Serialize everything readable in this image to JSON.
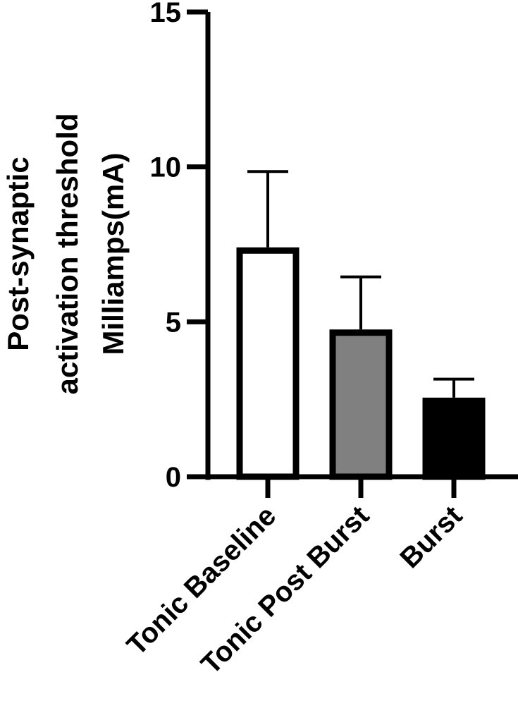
{
  "chart_data": {
    "type": "bar",
    "categories": [
      "Tonic Baseline",
      "Tonic Post Burst",
      "Burst"
    ],
    "values": [
      7.3,
      4.65,
      2.45
    ],
    "errors": [
      2.55,
      1.8,
      0.7
    ],
    "bar_colors": [
      "#ffffff",
      "#808080",
      "#000000"
    ],
    "ylabel_lines": [
      "Post-synaptic",
      "activation threshold",
      "Milliamps(mA)"
    ],
    "xlabel": "",
    "ylim": [
      0,
      15
    ],
    "yticks": [
      0,
      5,
      10,
      15
    ],
    "grid": false,
    "legend": "none"
  }
}
